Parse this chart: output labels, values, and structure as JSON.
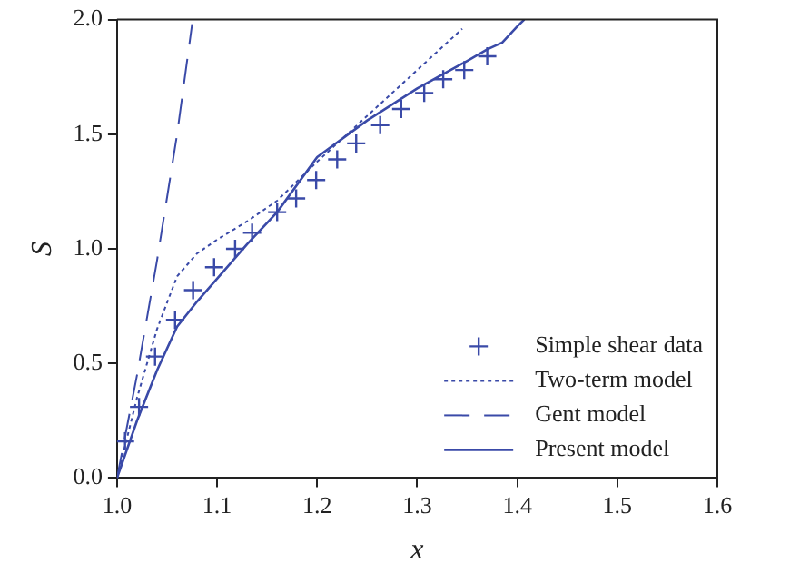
{
  "chart_data": {
    "type": "line",
    "xlabel": "x",
    "ylabel": "S",
    "xlim": [
      1.0,
      1.6
    ],
    "ylim": [
      0,
      2.0
    ],
    "xticks": [
      {
        "value": 1.0,
        "label": "1.0"
      },
      {
        "value": 1.1,
        "label": "1.1"
      },
      {
        "value": 1.2,
        "label": "1.2"
      },
      {
        "value": 1.3,
        "label": "1.3"
      },
      {
        "value": 1.4,
        "label": "1.4"
      },
      {
        "value": 1.5,
        "label": "1.5"
      },
      {
        "value": 1.6,
        "label": "1.6"
      }
    ],
    "yticks": [
      {
        "value": 0,
        "label": "0.0"
      },
      {
        "value": 0.5,
        "label": "0.5"
      },
      {
        "value": 1.0,
        "label": "1.0"
      },
      {
        "value": 1.5,
        "label": "1.5"
      },
      {
        "value": 2.0,
        "label": "2.0"
      }
    ],
    "grid": false,
    "legend": "bottom right",
    "series": [
      {
        "name": "Simple shear data",
        "type": "scatter",
        "marker": "cross",
        "color": "#3a4aa8",
        "x": [
          1.008,
          1.022,
          1.038,
          1.058,
          1.076,
          1.097,
          1.118,
          1.135,
          1.16,
          1.179,
          1.199,
          1.22,
          1.239,
          1.263,
          1.284,
          1.307,
          1.326,
          1.347,
          1.37
        ],
        "values": [
          0.16,
          0.31,
          0.53,
          0.69,
          0.82,
          0.92,
          1.0,
          1.07,
          1.16,
          1.22,
          1.3,
          1.39,
          1.46,
          1.54,
          1.61,
          1.68,
          1.74,
          1.78,
          1.84
        ]
      },
      {
        "name": "Two-term model",
        "type": "line",
        "line_style": "dotted",
        "marker": "none",
        "color": "#3a4aa8",
        "x": [
          1.0,
          1.02,
          1.04,
          1.06,
          1.08,
          1.1,
          1.13,
          1.16,
          1.2,
          1.25,
          1.3,
          1.345
        ],
        "values": [
          0,
          0.35,
          0.65,
          0.88,
          0.98,
          1.04,
          1.12,
          1.21,
          1.38,
          1.58,
          1.78,
          1.96
        ]
      },
      {
        "name": "Gent model",
        "type": "line",
        "line_style": "dashed",
        "marker": "none",
        "color": "#3a4aa8",
        "x": [
          1.0,
          1.02,
          1.04,
          1.06,
          1.075
        ],
        "values": [
          0,
          0.45,
          0.95,
          1.5,
          1.98
        ]
      },
      {
        "name": "Present model",
        "type": "line",
        "line_style": "solid",
        "marker": "none",
        "color": "#3a4aa8",
        "x": [
          1.0,
          1.02,
          1.04,
          1.06,
          1.08,
          1.1,
          1.13,
          1.16,
          1.2,
          1.25,
          1.3,
          1.35,
          1.37,
          1.385,
          1.4,
          1.407
        ],
        "values": [
          0,
          0.25,
          0.47,
          0.66,
          0.77,
          0.87,
          1.02,
          1.16,
          1.4,
          1.56,
          1.7,
          1.82,
          1.87,
          1.9,
          1.97,
          2.0
        ]
      }
    ]
  }
}
